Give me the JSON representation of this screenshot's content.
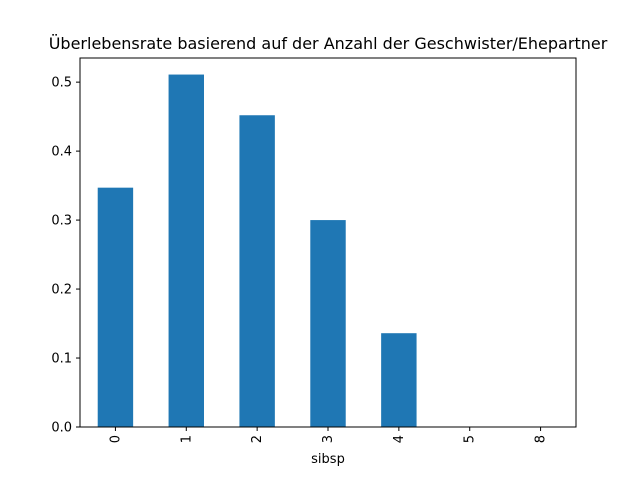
{
  "chart_data": {
    "type": "bar",
    "title": "Überlebensrate basierend auf der Anzahl der Geschwister/Ehepartner",
    "xlabel": "sibsp",
    "ylabel": "",
    "categories": [
      "0",
      "1",
      "2",
      "3",
      "4",
      "5",
      "8"
    ],
    "values": [
      0.347,
      0.511,
      0.452,
      0.3,
      0.136,
      0.0,
      0.0
    ],
    "ylim": [
      0,
      0.535
    ],
    "yticks": [
      "0.0",
      "0.1",
      "0.2",
      "0.3",
      "0.4",
      "0.5"
    ],
    "ytick_values": [
      0,
      0.1,
      0.2,
      0.3,
      0.4,
      0.5
    ],
    "xtick_rotation": "vertical",
    "grid": false,
    "legend": "none",
    "bar_color": "#1f77b4"
  }
}
